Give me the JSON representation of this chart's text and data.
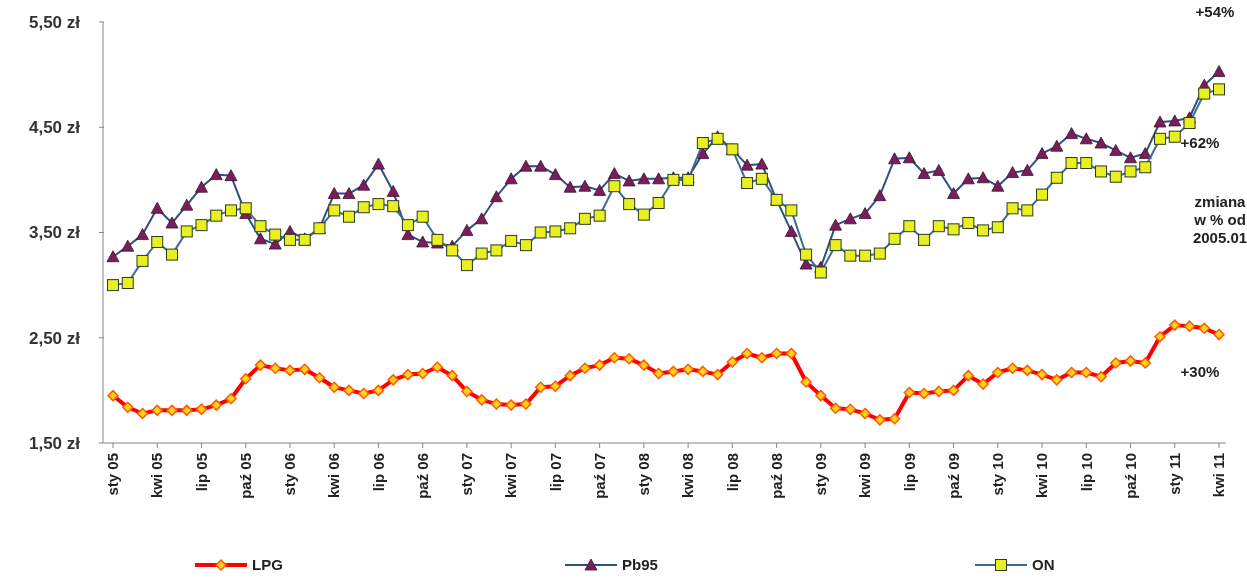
{
  "chart_data": {
    "type": "line",
    "categories": [
      "sty 05",
      null,
      null,
      "kwi 05",
      null,
      null,
      "lip 05",
      null,
      null,
      "paź 05",
      null,
      null,
      "sty 06",
      null,
      null,
      "kwi 06",
      null,
      null,
      "lip 06",
      null,
      null,
      "paź 06",
      null,
      null,
      "sty 07",
      null,
      null,
      "kwi 07",
      null,
      null,
      "lip 07",
      null,
      null,
      "paź 07",
      null,
      null,
      "sty 08",
      null,
      null,
      "kwi 08",
      null,
      null,
      "lip 08",
      null,
      null,
      "paź 08",
      null,
      null,
      "sty 09",
      null,
      null,
      "kwi 09",
      null,
      null,
      "lip 09",
      null,
      null,
      "paź 09",
      null,
      null,
      "sty 10",
      null,
      null,
      "kwi 10",
      null,
      null,
      "lip 10",
      null,
      null,
      "paź 10",
      null,
      null,
      "sty 11",
      null,
      null,
      "kwi 11"
    ],
    "series": [
      {
        "name": "LPG",
        "color": "#ff0000",
        "marker": "diamond",
        "values": [
          1.95,
          1.84,
          1.78,
          1.81,
          1.81,
          1.81,
          1.82,
          1.86,
          1.92,
          2.11,
          2.24,
          2.21,
          2.19,
          2.2,
          2.12,
          2.03,
          2.0,
          1.97,
          2.0,
          2.1,
          2.15,
          2.16,
          2.22,
          2.14,
          1.99,
          1.91,
          1.87,
          1.86,
          1.87,
          2.03,
          2.04,
          2.14,
          2.21,
          2.24,
          2.31,
          2.3,
          2.24,
          2.16,
          2.18,
          2.2,
          2.18,
          2.15,
          2.27,
          2.35,
          2.31,
          2.35,
          2.35,
          2.08,
          1.95,
          1.83,
          1.82,
          1.78,
          1.72,
          1.73,
          1.98,
          1.97,
          1.99,
          2.0,
          2.14,
          2.06,
          2.17,
          2.21,
          2.19,
          2.15,
          2.1,
          2.17,
          2.17,
          2.13,
          2.26,
          2.28,
          2.26,
          2.51,
          2.62,
          2.61,
          2.59,
          2.53
        ]
      },
      {
        "name": "Pb95",
        "color": "#2f4f7f",
        "marker": "triangle",
        "values": [
          3.27,
          3.37,
          3.48,
          3.73,
          3.59,
          3.76,
          3.93,
          4.05,
          4.04,
          3.68,
          3.44,
          3.39,
          3.51,
          3.44,
          3.54,
          3.87,
          3.87,
          3.95,
          4.15,
          3.89,
          3.48,
          3.41,
          3.4,
          3.37,
          3.52,
          3.63,
          3.84,
          4.01,
          4.13,
          4.13,
          4.05,
          3.93,
          3.94,
          3.9,
          4.06,
          3.99,
          4.01,
          4.01,
          4.02,
          4.02,
          4.25,
          4.41,
          4.29,
          4.14,
          4.15,
          3.81,
          3.51,
          3.2,
          3.17,
          3.57,
          3.63,
          3.68,
          3.85,
          4.2,
          4.21,
          4.06,
          4.09,
          3.87,
          4.01,
          4.02,
          3.94,
          4.07,
          4.09,
          4.25,
          4.32,
          4.44,
          4.39,
          4.35,
          4.28,
          4.21,
          4.25,
          4.55,
          4.56,
          4.59,
          4.9,
          5.03
        ]
      },
      {
        "name": "ON",
        "color": "#3d6a99",
        "marker": "square",
        "values": [
          3.0,
          3.02,
          3.23,
          3.41,
          3.29,
          3.51,
          3.57,
          3.66,
          3.71,
          3.73,
          3.56,
          3.48,
          3.43,
          3.43,
          3.54,
          3.71,
          3.65,
          3.74,
          3.77,
          3.75,
          3.57,
          3.65,
          3.43,
          3.33,
          3.19,
          3.3,
          3.33,
          3.42,
          3.38,
          3.5,
          3.51,
          3.54,
          3.63,
          3.66,
          3.94,
          3.77,
          3.67,
          3.78,
          4.0,
          4.0,
          4.35,
          4.39,
          4.29,
          3.97,
          4.01,
          3.81,
          3.71,
          3.29,
          3.12,
          3.38,
          3.28,
          3.28,
          3.3,
          3.44,
          3.56,
          3.43,
          3.56,
          3.53,
          3.59,
          3.52,
          3.55,
          3.73,
          3.71,
          3.86,
          4.02,
          4.16,
          4.16,
          4.08,
          4.03,
          4.08,
          4.12,
          4.39,
          4.41,
          4.54,
          4.82,
          4.86
        ]
      }
    ],
    "ylim": [
      1.5,
      5.5
    ],
    "yticks": [
      {
        "value": 1.5,
        "label": "1,50 zł"
      },
      {
        "value": 2.5,
        "label": "2,50 zł"
      },
      {
        "value": 3.5,
        "label": "3,50 zł"
      },
      {
        "value": 4.5,
        "label": "4,50 zł"
      },
      {
        "value": 5.5,
        "label": "5,50 zł"
      }
    ],
    "annotations": [
      "+54%",
      "+62%",
      "zmiana\nw % od\n2005.01",
      "+30%"
    ],
    "legend": "bottom",
    "grid": false,
    "line_style": "solid"
  }
}
